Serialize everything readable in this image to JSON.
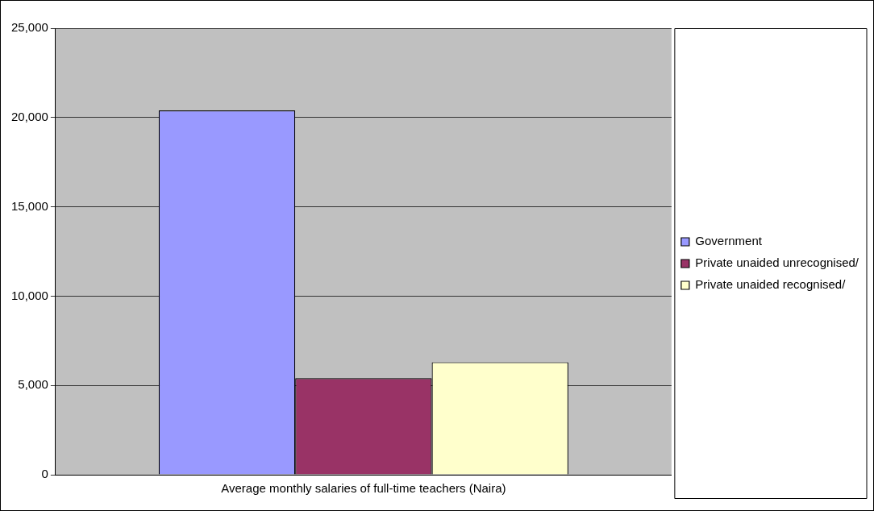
{
  "chart_data": {
    "type": "bar",
    "categories": [
      "Average monthly salaries of full-time teachers (Naira)"
    ],
    "series": [
      {
        "name": "Government",
        "color": "#9999ff",
        "values": [
          20400
        ]
      },
      {
        "name": "Private unaided unrecognised/",
        "color": "#993366",
        "values": [
          5400
        ]
      },
      {
        "name": "Private unaided recognised/",
        "color": "#ffffcc",
        "values": [
          6300
        ]
      }
    ],
    "ylim": [
      0,
      25000
    ],
    "yticks": [
      {
        "value": 0,
        "label": "0"
      },
      {
        "value": 5000,
        "label": "5,000"
      },
      {
        "value": 10000,
        "label": "10,000"
      },
      {
        "value": 15000,
        "label": "15,000"
      },
      {
        "value": 20000,
        "label": "20,000"
      },
      {
        "value": 25000,
        "label": "25,000"
      }
    ],
    "grid": "y",
    "legend": "right"
  }
}
